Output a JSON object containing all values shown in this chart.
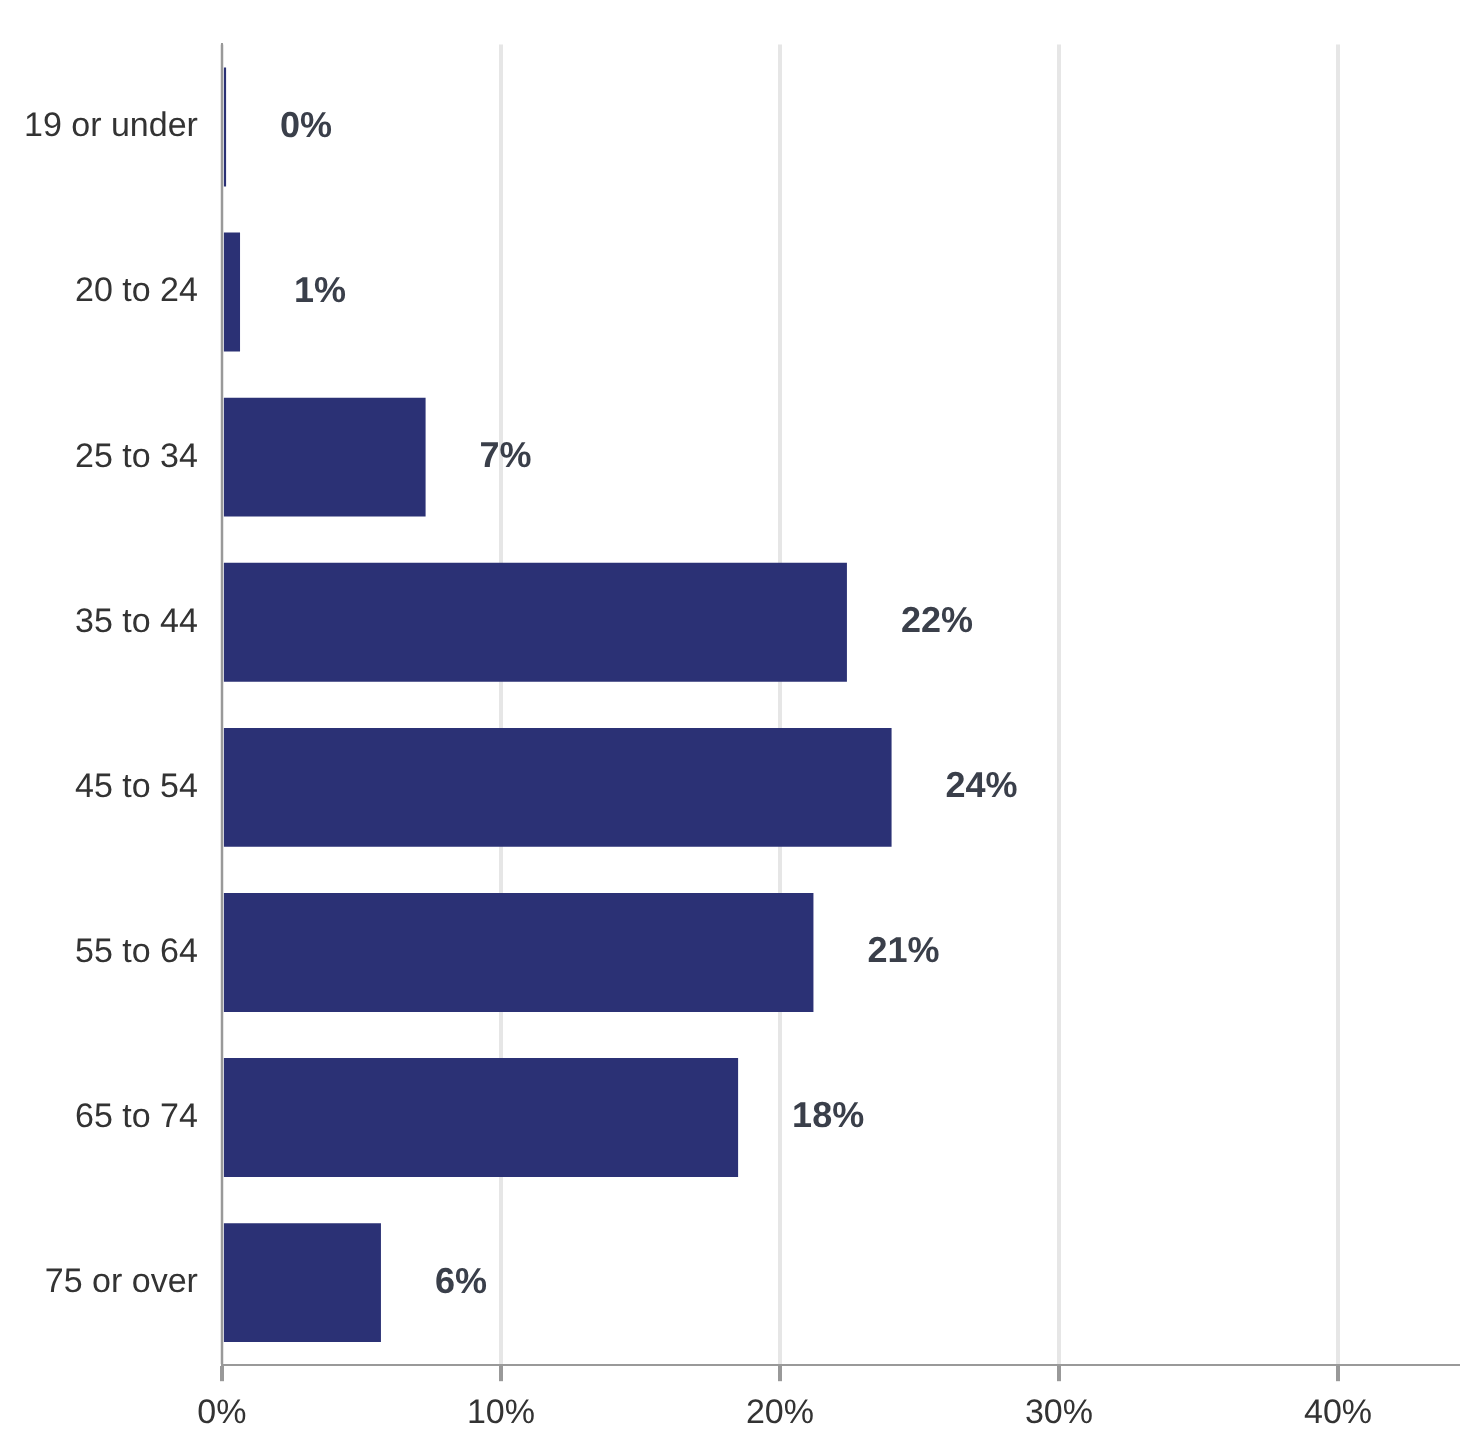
{
  "chart_data": {
    "type": "bar",
    "orientation": "horizontal",
    "categories": [
      "19 or under",
      "20 to 24",
      "25 to 34",
      "35 to 44",
      "45 to 54",
      "55 to 64",
      "65 to 74",
      "75 or over"
    ],
    "values": [
      0.15,
      0.65,
      7.3,
      22.4,
      24.0,
      21.2,
      18.5,
      5.7
    ],
    "value_labels": [
      "0%",
      "1%",
      "7%",
      "22%",
      "24%",
      "21%",
      "18%",
      "6%"
    ],
    "color": "#2b3175",
    "xlim": [
      0,
      44.3
    ],
    "xticks": [
      {
        "value": 0,
        "label": "0%"
      },
      {
        "value": 10,
        "label": "10%"
      },
      {
        "value": 20,
        "label": "20%"
      },
      {
        "value": 30,
        "label": "30%"
      },
      {
        "value": 40,
        "label": "40%"
      }
    ],
    "grid": "x",
    "legend": false
  }
}
